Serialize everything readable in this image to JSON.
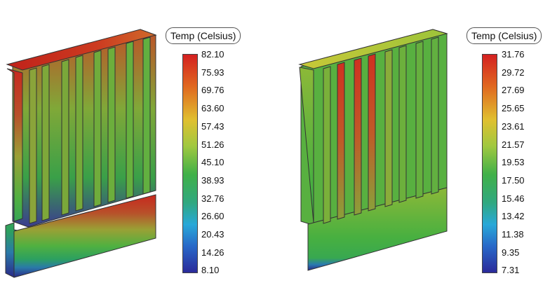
{
  "left_legend": {
    "title": "Temp (Celsius)",
    "ticks": [
      "82.10",
      "75.93",
      "69.76",
      "63.60",
      "57.43",
      "51.26",
      "45.10",
      "38.93",
      "32.76",
      "26.60",
      "20.43",
      "14.26",
      "8.10"
    ]
  },
  "right_legend": {
    "title": "Temp (Celsius)",
    "ticks": [
      "31.76",
      "29.72",
      "27.69",
      "25.65",
      "23.61",
      "21.57",
      "19.53",
      "17.50",
      "15.46",
      "13.42",
      "11.38",
      "9.35",
      "7.31"
    ]
  },
  "colors": {
    "hot": "#e02020",
    "warm": "#e8d030",
    "mid": "#3fb43a",
    "cool": "#28a8d8",
    "cold": "#2a2a9a"
  }
}
